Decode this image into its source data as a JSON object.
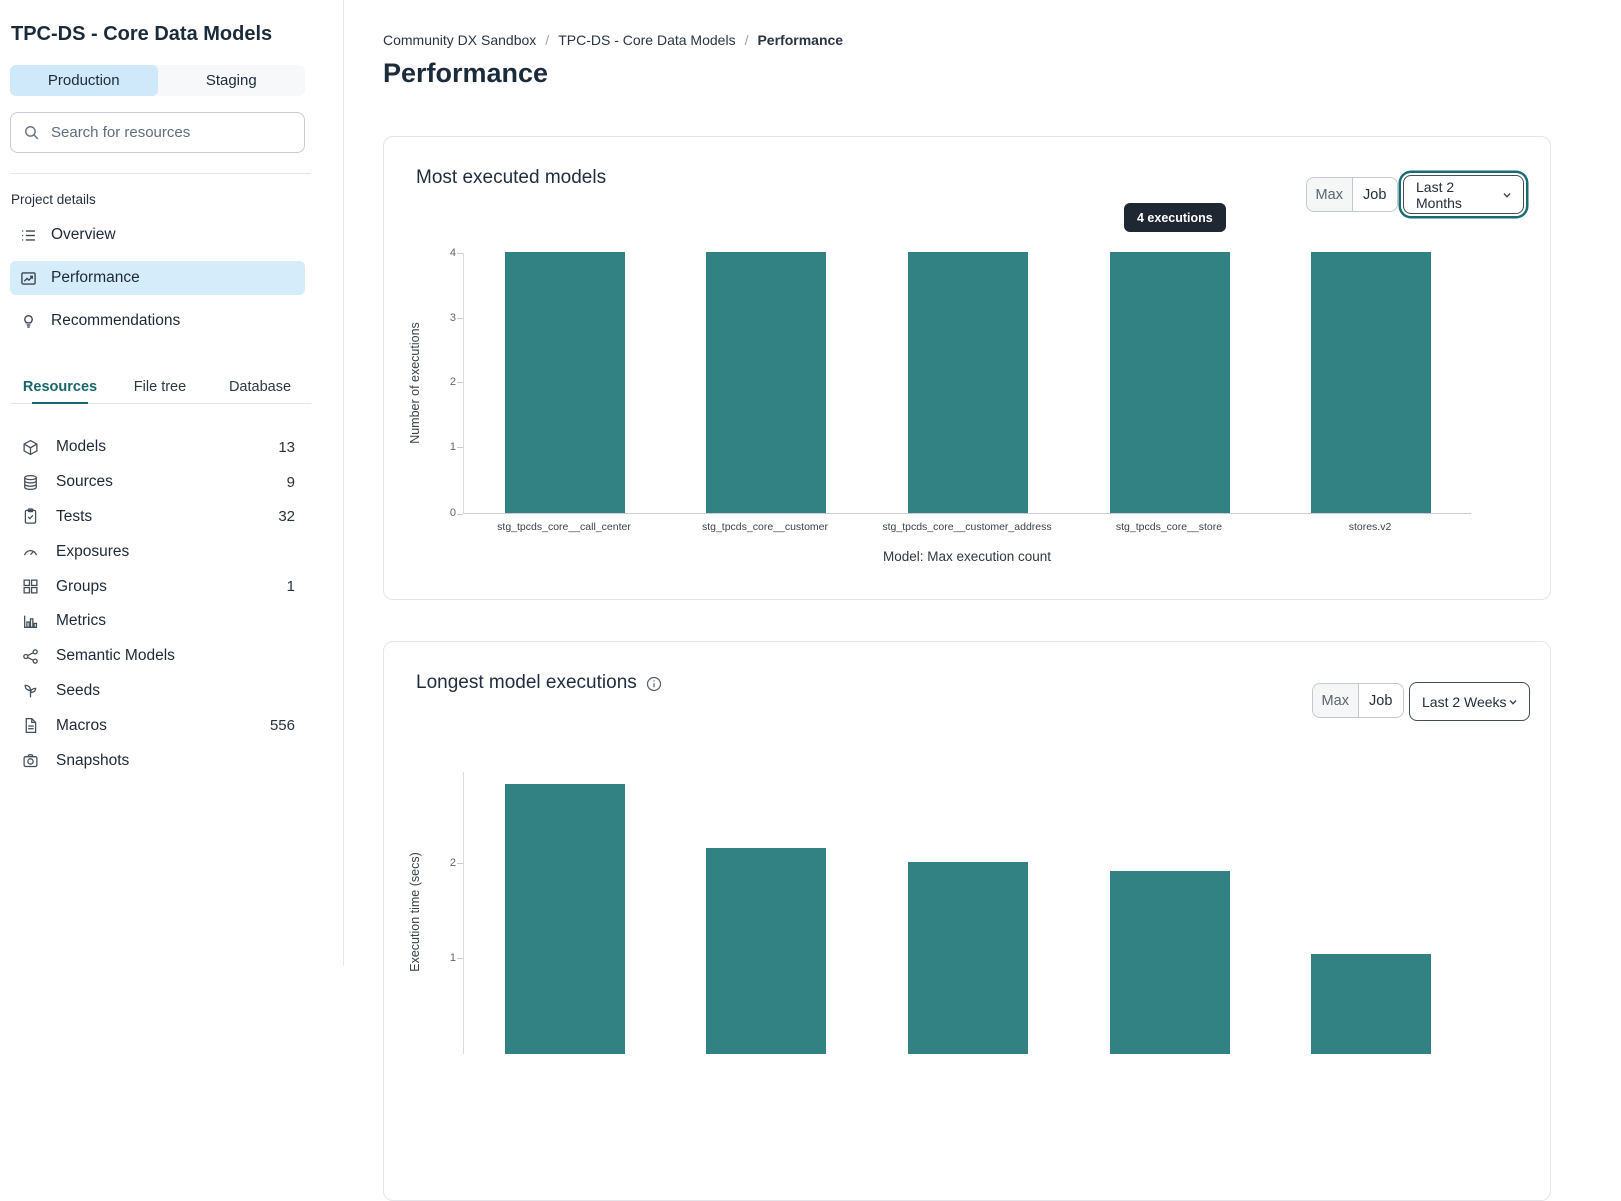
{
  "sidebar": {
    "project_title": "TPC-DS - Core Data Models",
    "env_toggle": {
      "production": "Production",
      "staging": "Staging",
      "selected": "Production"
    },
    "search": {
      "placeholder": "Search for resources"
    },
    "project_details": {
      "label": "Project details",
      "items": [
        {
          "icon": "list-icon",
          "label": "Overview",
          "active": false
        },
        {
          "icon": "trend-chart-icon",
          "label": "Performance",
          "active": true
        },
        {
          "icon": "lightbulb-icon",
          "label": "Recommendations",
          "active": false
        }
      ]
    },
    "tabs": [
      {
        "label": "Resources",
        "active": true
      },
      {
        "label": "File tree",
        "active": false
      },
      {
        "label": "Database",
        "active": false
      }
    ],
    "resources": [
      {
        "icon": "cube-icon",
        "label": "Models",
        "count": "13"
      },
      {
        "icon": "database-icon",
        "label": "Sources",
        "count": "9"
      },
      {
        "icon": "clipboard-check-icon",
        "label": "Tests",
        "count": "32"
      },
      {
        "icon": "gauge-icon",
        "label": "Exposures",
        "count": ""
      },
      {
        "icon": "grid-icon",
        "label": "Groups",
        "count": "1"
      },
      {
        "icon": "bar-chart-icon",
        "label": "Metrics",
        "count": ""
      },
      {
        "icon": "network-icon",
        "label": "Semantic Models",
        "count": ""
      },
      {
        "icon": "sprout-icon",
        "label": "Seeds",
        "count": ""
      },
      {
        "icon": "document-icon",
        "label": "Macros",
        "count": "556"
      },
      {
        "icon": "camera-icon",
        "label": "Snapshots",
        "count": ""
      }
    ]
  },
  "breadcrumb": [
    "Community DX Sandbox",
    "TPC-DS - Core Data Models",
    "Performance"
  ],
  "page_title": "Performance",
  "cards": [
    {
      "title": "Most executed models",
      "buttons": {
        "max": "Max",
        "job": "Job"
      },
      "dropdown": "Last 2 Months",
      "dropdown_focused": true,
      "tooltip": "4 executions"
    },
    {
      "title": "Longest model executions",
      "has_info_icon": true,
      "buttons": {
        "max": "Max",
        "job": "Job"
      },
      "dropdown": "Last 2 Weeks",
      "dropdown_focused": false
    }
  ],
  "chart_data": [
    {
      "type": "bar",
      "title": "Most executed models",
      "categories": [
        "stg_tpcds_core__call_center",
        "stg_tpcds_core__customer",
        "stg_tpcds_core__customer_address",
        "stg_tpcds_core__store",
        "stores.v2"
      ],
      "values": [
        4,
        4,
        4,
        4,
        4
      ],
      "xlabel": "Model: Max execution count",
      "ylabel": "Number of executions",
      "ylim": [
        0,
        4
      ],
      "ytick_labels_top_to_bottom": [
        "4",
        "3",
        "2",
        "1",
        "0"
      ],
      "bar_color": "#328284",
      "grid": false,
      "tooltip": {
        "text": "4 executions",
        "over_category": "stg_tpcds_core__store"
      }
    },
    {
      "type": "bar",
      "title": "Longest model executions",
      "values": [
        2.83,
        2.16,
        2.01,
        1.92,
        1.05
      ],
      "ylabel": "Execution time (secs)",
      "ylim": [
        0,
        3
      ],
      "visible_ytick_labels_top_to_bottom": [
        "2",
        "1"
      ],
      "bar_color": "#328284",
      "grid": false
    }
  ],
  "colors": {
    "bar_teal": "#328284",
    "accent_teal": "#19666d",
    "active_blue": "#d5ecfb",
    "toggle_blue": "#cfe9fb",
    "tooltip_bg": "#1f2733",
    "card_border": "#e3e6e8",
    "text_dark": "#1c2b3a"
  }
}
